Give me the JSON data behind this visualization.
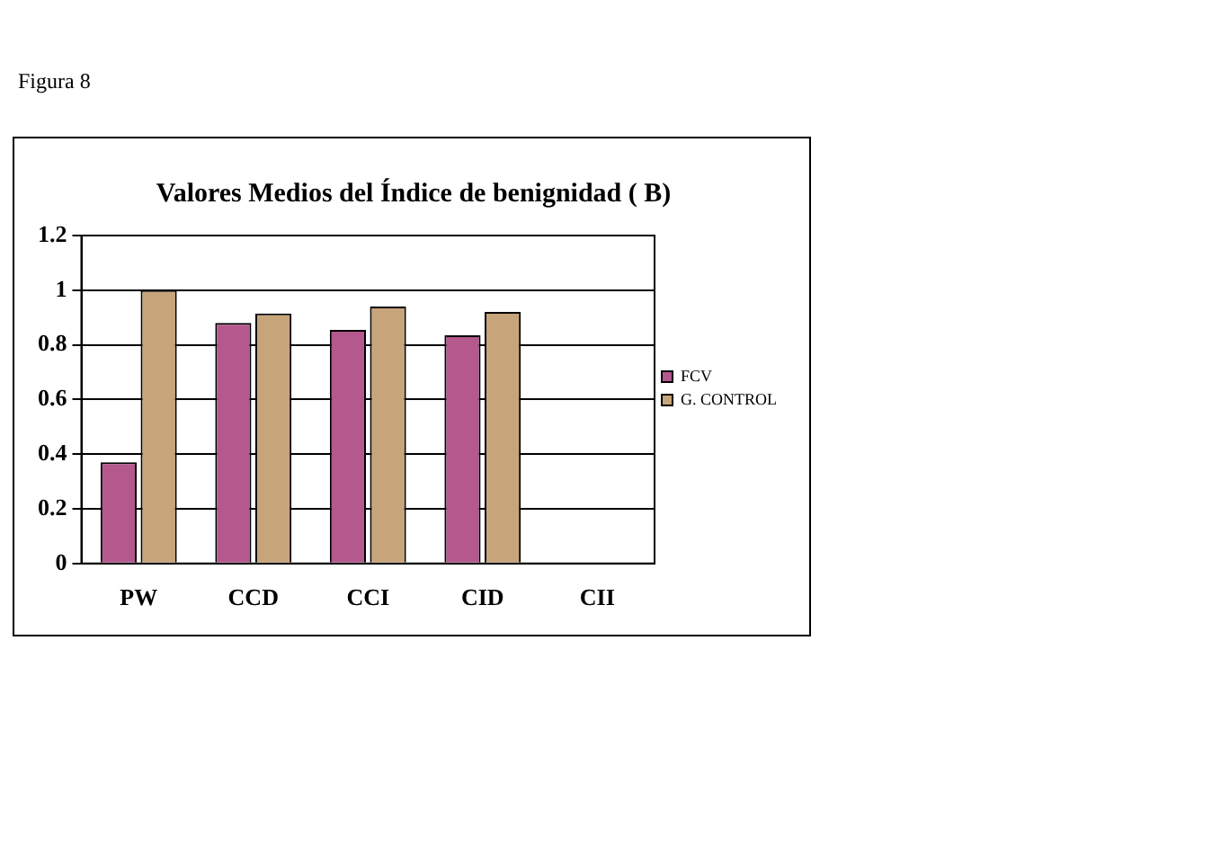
{
  "chart_data": {
    "type": "bar",
    "title": "Valores Medios del Índice de benignidad ( B)",
    "annotations": [
      "Figura 8"
    ],
    "categories": [
      "PW",
      "CCD",
      "CCI",
      "CID",
      "CII"
    ],
    "series": [
      {
        "name": "FCV",
        "color": "#b4588e",
        "values": [
          0.37,
          0.88,
          0.855,
          0.835,
          null
        ]
      },
      {
        "name": "G. CONTROL",
        "color": "#c8a47a",
        "values": [
          1.0,
          0.915,
          0.94,
          0.92,
          null
        ]
      }
    ],
    "ylim": [
      0,
      1.2
    ],
    "yticks": [
      0,
      0.2,
      0.4,
      0.6,
      0.8,
      1,
      1.2
    ],
    "grid": "y",
    "legend": "right"
  }
}
